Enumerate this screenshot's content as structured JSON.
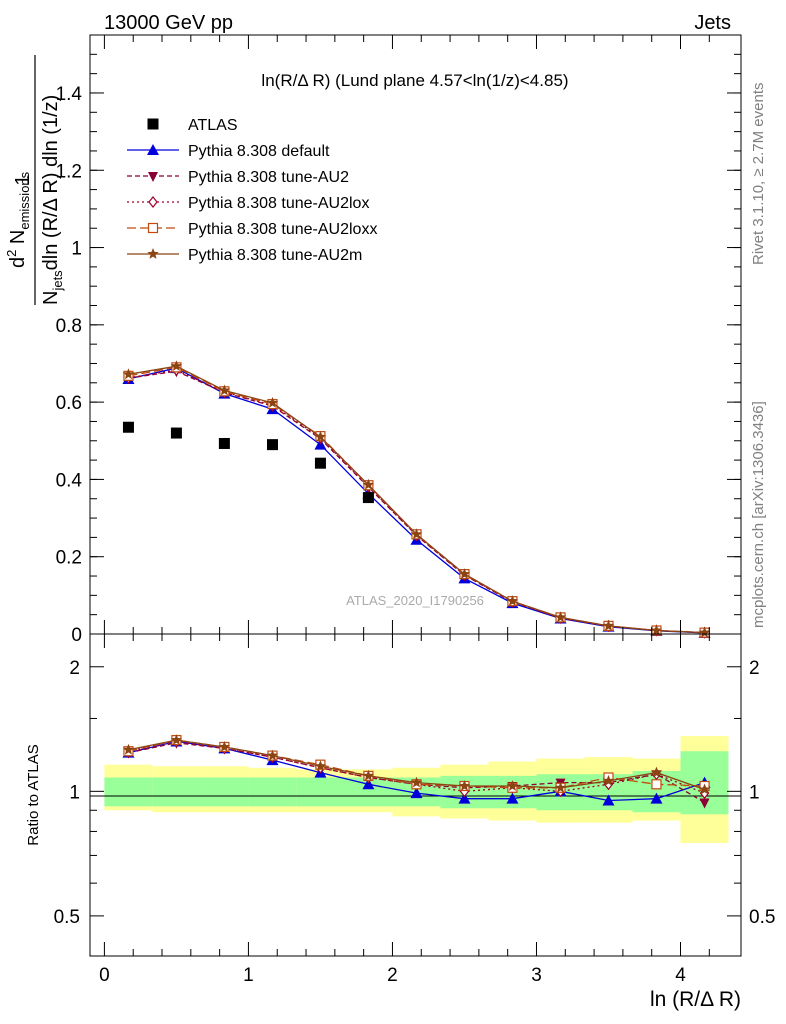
{
  "header": {
    "left": "13000 GeV pp",
    "right": "Jets"
  },
  "plot_title": "ln(R/Δ R) (Lund plane 4.57<ln(1/z)<4.85)",
  "side_texts": {
    "rivet": "Rivet 3.1.10, ≥ 2.7M events",
    "mcplots": "mcplots.cern.ch [arXiv:1306.3436]"
  },
  "watermark": "ATLAS_2020_I1790256",
  "colors": {
    "atlas": "#000000",
    "default": "#0000dd",
    "au2": "#8b0036",
    "au2lox": "#a0002a",
    "au2loxx": "#c24a10",
    "au2m": "#8b4513",
    "band_inner": "#99ff99",
    "band_outer": "#ffff99"
  },
  "chart_data": [
    {
      "type": "scatter",
      "panel": "main",
      "ylabel_parts": {
        "one": "1",
        "njets": "N",
        "jets_sub": "jets",
        "dln": "dln (R/Δ R) dln (1/z)",
        "d2n": "d",
        "two_sup": "2",
        "n": " N",
        "emis_sub": "emissions"
      },
      "ylim": [
        0,
        1.55
      ],
      "xlim": [
        -0.1,
        4.42
      ],
      "yticks": [
        "0",
        "0.2",
        "0.4",
        "0.6",
        "0.8",
        "1",
        "1.2",
        "1.4"
      ],
      "ytick_values": [
        0,
        0.2,
        0.4,
        0.6,
        0.8,
        1.0,
        1.2,
        1.4
      ],
      "x": [
        0.167,
        0.5,
        0.833,
        1.167,
        1.5,
        1.833,
        2.167,
        2.5,
        2.833,
        3.167,
        3.5,
        3.833,
        4.167
      ],
      "series": [
        {
          "name": "ATLAS",
          "key": "atlas",
          "values": [
            0.535,
            0.52,
            0.493,
            0.49,
            0.442,
            0.353,
            null,
            null,
            null,
            null,
            null,
            null,
            null
          ]
        },
        {
          "name": "Pythia 8.308 default",
          "key": "default",
          "values": [
            0.66,
            0.688,
            0.622,
            0.582,
            0.49,
            0.363,
            0.244,
            0.144,
            0.08,
            0.04,
            0.019,
            0.008,
            0.003
          ]
        },
        {
          "name": "Pythia 8.308 tune-AU2",
          "key": "au2",
          "values": [
            0.662,
            0.68,
            0.625,
            0.59,
            0.505,
            0.38,
            0.255,
            0.152,
            0.083,
            0.041,
            0.02,
            0.009,
            0.0035
          ]
        },
        {
          "name": "Pythia 8.308 tune-AU2lox",
          "key": "au2lox",
          "values": [
            0.663,
            0.683,
            0.626,
            0.592,
            0.508,
            0.382,
            0.256,
            0.153,
            0.084,
            0.042,
            0.021,
            0.009,
            0.0035
          ]
        },
        {
          "name": "Pythia 8.308 tune-AU2loxx",
          "key": "au2loxx",
          "values": [
            0.668,
            0.69,
            0.628,
            0.595,
            0.512,
            0.385,
            0.258,
            0.155,
            0.085,
            0.043,
            0.021,
            0.009,
            0.0035
          ]
        },
        {
          "name": "Pythia 8.308 tune-AU2m",
          "key": "au2m",
          "values": [
            0.672,
            0.693,
            0.63,
            0.598,
            0.51,
            0.386,
            0.258,
            0.155,
            0.085,
            0.043,
            0.021,
            0.009,
            0.0035
          ]
        }
      ]
    },
    {
      "type": "scatter",
      "panel": "ratio",
      "ylabel": "Ratio to ATLAS",
      "xlabel": "ln (R/Δ R)",
      "ylim": [
        0.4,
        2.4
      ],
      "yticks": [
        "0.5",
        "1",
        "2"
      ],
      "ytick_values": [
        0.5,
        1,
        2
      ],
      "xticks": [
        "0",
        "1",
        "2",
        "3",
        "4"
      ],
      "xtick_values": [
        0,
        1,
        2,
        3,
        4
      ],
      "bin_edges": [
        0,
        0.333,
        0.667,
        1.0,
        1.333,
        1.667,
        2.0,
        2.333,
        2.667,
        3.0,
        3.333,
        3.667,
        4.0,
        4.333
      ],
      "band_inner": [
        [
          0.92,
          1.08
        ],
        [
          0.92,
          1.08
        ],
        [
          0.92,
          1.08
        ],
        [
          0.92,
          1.08
        ],
        [
          0.92,
          1.08
        ],
        [
          0.92,
          1.08
        ],
        [
          0.92,
          1.08
        ],
        [
          0.91,
          1.09
        ],
        [
          0.91,
          1.09
        ],
        [
          0.9,
          1.1
        ],
        [
          0.9,
          1.1
        ],
        [
          0.89,
          1.12
        ],
        [
          0.88,
          1.25
        ]
      ],
      "band_outer": [
        [
          0.9,
          1.16
        ],
        [
          0.89,
          1.15
        ],
        [
          0.89,
          1.15
        ],
        [
          0.89,
          1.14
        ],
        [
          0.89,
          1.13
        ],
        [
          0.89,
          1.13
        ],
        [
          0.87,
          1.14
        ],
        [
          0.86,
          1.16
        ],
        [
          0.85,
          1.18
        ],
        [
          0.84,
          1.2
        ],
        [
          0.84,
          1.21
        ],
        [
          0.85,
          1.2
        ],
        [
          0.75,
          1.36
        ]
      ],
      "x": [
        0.167,
        0.5,
        0.833,
        1.167,
        1.5,
        1.833,
        2.167,
        2.5,
        2.833,
        3.167,
        3.5,
        3.833,
        4.167
      ],
      "series": [
        {
          "name": "Pythia 8.308 default",
          "key": "default",
          "values": [
            1.24,
            1.32,
            1.27,
            1.19,
            1.11,
            1.04,
            0.99,
            0.96,
            0.96,
            1.0,
            0.95,
            0.96,
            1.05
          ]
        },
        {
          "name": "Pythia 8.308 tune-AU2",
          "key": "au2",
          "values": [
            1.24,
            1.31,
            1.27,
            1.21,
            1.14,
            1.08,
            1.04,
            1.02,
            1.03,
            1.05,
            1.05,
            1.1,
            0.94
          ]
        },
        {
          "name": "Pythia 8.308 tune-AU2lox",
          "key": "au2lox",
          "values": [
            1.25,
            1.32,
            1.27,
            1.21,
            1.14,
            1.08,
            1.04,
            1.0,
            1.02,
            1.0,
            1.04,
            1.1,
            0.99
          ]
        },
        {
          "name": "Pythia 8.308 tune-AU2loxx",
          "key": "au2loxx",
          "values": [
            1.25,
            1.33,
            1.28,
            1.22,
            1.16,
            1.09,
            1.04,
            1.03,
            1.02,
            1.02,
            1.08,
            1.04,
            1.03
          ]
        },
        {
          "name": "Pythia 8.308 tune-AU2m",
          "key": "au2m",
          "values": [
            1.26,
            1.33,
            1.28,
            1.22,
            1.15,
            1.09,
            1.05,
            1.03,
            1.03,
            1.02,
            1.06,
            1.11,
            1.01
          ]
        }
      ]
    }
  ]
}
